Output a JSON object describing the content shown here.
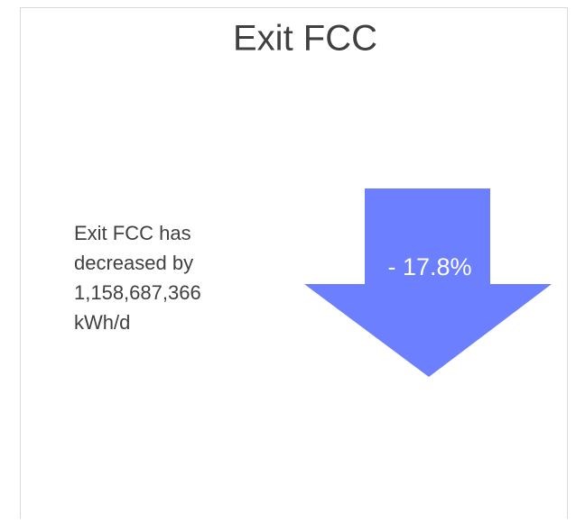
{
  "title": "Exit FCC",
  "description": [
    "Exit FCC has",
    "decreased by",
    "1,158,687,366",
    "kWh/d"
  ],
  "change_label": "- 17.8%"
}
